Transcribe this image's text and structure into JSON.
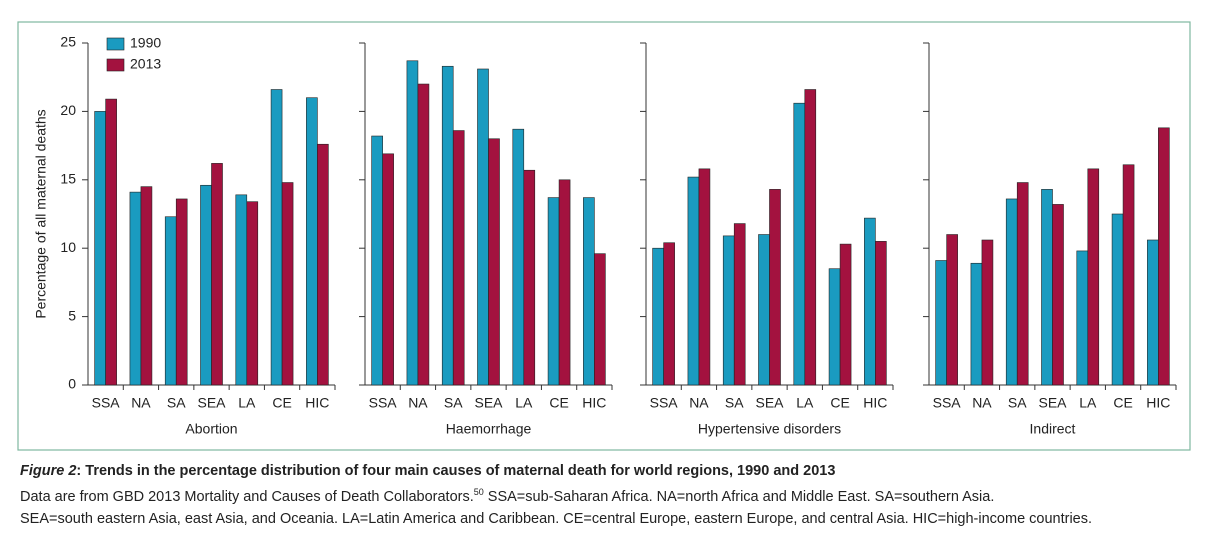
{
  "chart_data": [
    {
      "type": "bar",
      "xlabel": "Abortion",
      "ylabel": "Percentage of all maternal deaths",
      "legend": "upper left",
      "categories": [
        "SSA",
        "NA",
        "SA",
        "SEA",
        "LA",
        "CE",
        "HIC"
      ],
      "series": [
        {
          "name": "1990",
          "color": "#1a9bc0",
          "values": [
            20.0,
            14.1,
            12.3,
            14.6,
            13.9,
            21.6,
            21.0
          ]
        },
        {
          "name": "2013",
          "color": "#a3123f",
          "values": [
            20.9,
            14.5,
            13.6,
            16.2,
            13.4,
            14.8,
            17.6
          ]
        }
      ],
      "ylim": [
        0,
        25
      ],
      "yticks": [
        0,
        5,
        10,
        15,
        20,
        25
      ]
    },
    {
      "type": "bar",
      "xlabel": "Haemorrhage",
      "categories": [
        "SSA",
        "NA",
        "SA",
        "SEA",
        "LA",
        "CE",
        "HIC"
      ],
      "series": [
        {
          "color": "#1a9bc0",
          "values": [
            18.2,
            23.7,
            23.3,
            23.1,
            18.7,
            13.7,
            13.7
          ]
        },
        {
          "color": "#a3123f",
          "values": [
            16.9,
            22.0,
            18.6,
            18.0,
            15.7,
            15.0,
            9.6
          ]
        }
      ],
      "ylim": [
        0,
        25
      ],
      "yticks": [
        0,
        5,
        10,
        15,
        20,
        25
      ]
    },
    {
      "type": "bar",
      "xlabel": "Hypertensive disorders",
      "categories": [
        "SSA",
        "NA",
        "SA",
        "SEA",
        "LA",
        "CE",
        "HIC"
      ],
      "series": [
        {
          "color": "#1a9bc0",
          "values": [
            10.0,
            15.2,
            10.9,
            11.0,
            20.6,
            8.5,
            12.2
          ]
        },
        {
          "color": "#a3123f",
          "values": [
            10.4,
            15.8,
            11.8,
            14.3,
            21.6,
            10.3,
            10.5
          ]
        }
      ],
      "ylim": [
        0,
        25
      ],
      "yticks": [
        0,
        5,
        10,
        15,
        20,
        25
      ]
    },
    {
      "type": "bar",
      "xlabel": "Indirect",
      "categories": [
        "SSA",
        "NA",
        "SA",
        "SEA",
        "LA",
        "CE",
        "HIC"
      ],
      "series": [
        {
          "color": "#1a9bc0",
          "values": [
            9.1,
            8.9,
            13.6,
            14.3,
            9.8,
            12.5,
            10.6
          ]
        },
        {
          "color": "#a3123f",
          "values": [
            11.0,
            10.6,
            14.8,
            13.2,
            15.8,
            16.1,
            18.8
          ]
        }
      ],
      "ylim": [
        0,
        25
      ],
      "yticks": [
        0,
        5,
        10,
        15,
        20,
        25
      ]
    }
  ],
  "caption": {
    "figure_label": "Figure 2",
    "title": ": Trends in the percentage distribution of four main causes of maternal death for world regions, 1990 and 2013",
    "note_parts": [
      "Data are from GBD 2013 Mortality and Causes of Death Collaborators.",
      "50",
      " SSA=sub-Saharan Africa. NA=north Africa and Middle East. SA=southern Asia.",
      "SEA=south eastern Asia, east Asia, and Oceania. LA=Latin America and Caribbean. CE=central Europe, eastern Europe, and central Asia. HIC=high-income countries."
    ]
  }
}
